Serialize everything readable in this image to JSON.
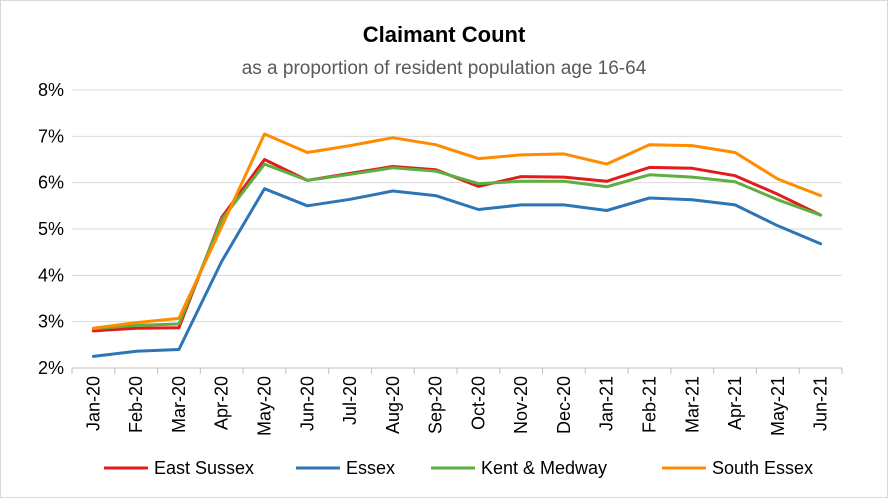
{
  "chart_data": {
    "type": "line",
    "title": "Claimant Count",
    "subtitle": "as a proportion of resident population age 16-64",
    "xlabel": "",
    "ylabel": "",
    "ylim": [
      2,
      8
    ],
    "yticks": [
      "2%",
      "3%",
      "4%",
      "5%",
      "6%",
      "7%",
      "8%"
    ],
    "categories": [
      "Jan-20",
      "Feb-20",
      "Mar-20",
      "Apr-20",
      "May-20",
      "Jun-20",
      "Jul-20",
      "Aug-20",
      "Sep-20",
      "Oct-20",
      "Nov-20",
      "Dec-20",
      "Jan-21",
      "Feb-21",
      "Mar-21",
      "Apr-21",
      "May-21",
      "Jun-21"
    ],
    "grid": true,
    "legend_position": "bottom",
    "series": [
      {
        "name": "East Sussex",
        "color": "#e41a1c",
        "values": [
          2.8,
          2.86,
          2.87,
          5.25,
          6.5,
          6.05,
          6.2,
          6.35,
          6.28,
          5.92,
          6.13,
          6.12,
          6.03,
          6.33,
          6.31,
          6.15,
          5.75,
          5.3
        ]
      },
      {
        "name": "Essex",
        "color": "#2e75b6",
        "values": [
          2.25,
          2.36,
          2.4,
          4.3,
          5.87,
          5.5,
          5.64,
          5.82,
          5.72,
          5.42,
          5.52,
          5.52,
          5.4,
          5.67,
          5.63,
          5.52,
          5.07,
          4.68
        ]
      },
      {
        "name": "Kent & Medway",
        "color": "#5cb040",
        "values": [
          2.85,
          2.92,
          2.95,
          5.2,
          6.4,
          6.05,
          6.18,
          6.32,
          6.25,
          5.98,
          6.03,
          6.03,
          5.91,
          6.17,
          6.12,
          6.02,
          5.63,
          5.3
        ]
      },
      {
        "name": "South Essex",
        "color": "#ff8c00",
        "values": [
          2.86,
          2.98,
          3.07,
          5.05,
          7.05,
          6.65,
          6.8,
          6.97,
          6.82,
          6.52,
          6.6,
          6.62,
          6.4,
          6.82,
          6.8,
          6.65,
          6.08,
          5.72
        ]
      }
    ]
  }
}
